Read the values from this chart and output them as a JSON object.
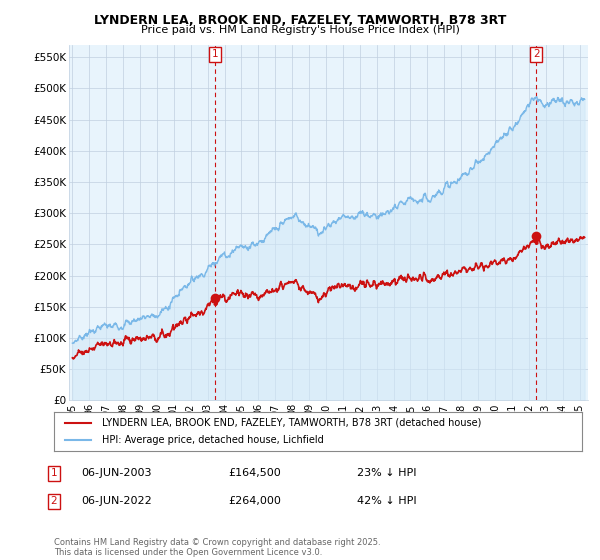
{
  "title": "LYNDERN LEA, BROOK END, FAZELEY, TAMWORTH, B78 3RT",
  "subtitle": "Price paid vs. HM Land Registry's House Price Index (HPI)",
  "ylabel_ticks": [
    "£0",
    "£50K",
    "£100K",
    "£150K",
    "£200K",
    "£250K",
    "£300K",
    "£350K",
    "£400K",
    "£450K",
    "£500K",
    "£550K"
  ],
  "ytick_values": [
    0,
    50000,
    100000,
    150000,
    200000,
    250000,
    300000,
    350000,
    400000,
    450000,
    500000,
    550000
  ],
  "ylim": [
    0,
    570000
  ],
  "xlim_start": 1994.8,
  "xlim_end": 2025.5,
  "hpi_color": "#7ab8e8",
  "hpi_fill_color": "#d0e8f8",
  "price_color": "#cc1111",
  "marker1_year": 2003.44,
  "marker1_price": 164500,
  "marker2_year": 2022.44,
  "marker2_price": 264000,
  "legend_house_label": "LYNDERN LEA, BROOK END, FAZELEY, TAMWORTH, B78 3RT (detached house)",
  "legend_hpi_label": "HPI: Average price, detached house, Lichfield",
  "footer": "Contains HM Land Registry data © Crown copyright and database right 2025.\nThis data is licensed under the Open Government Licence v3.0.",
  "dashed_line1_x": 2003.44,
  "dashed_line2_x": 2022.44,
  "background_color": "#ffffff",
  "plot_bg_color": "#e8f4fc",
  "grid_color": "#c0d0e0"
}
